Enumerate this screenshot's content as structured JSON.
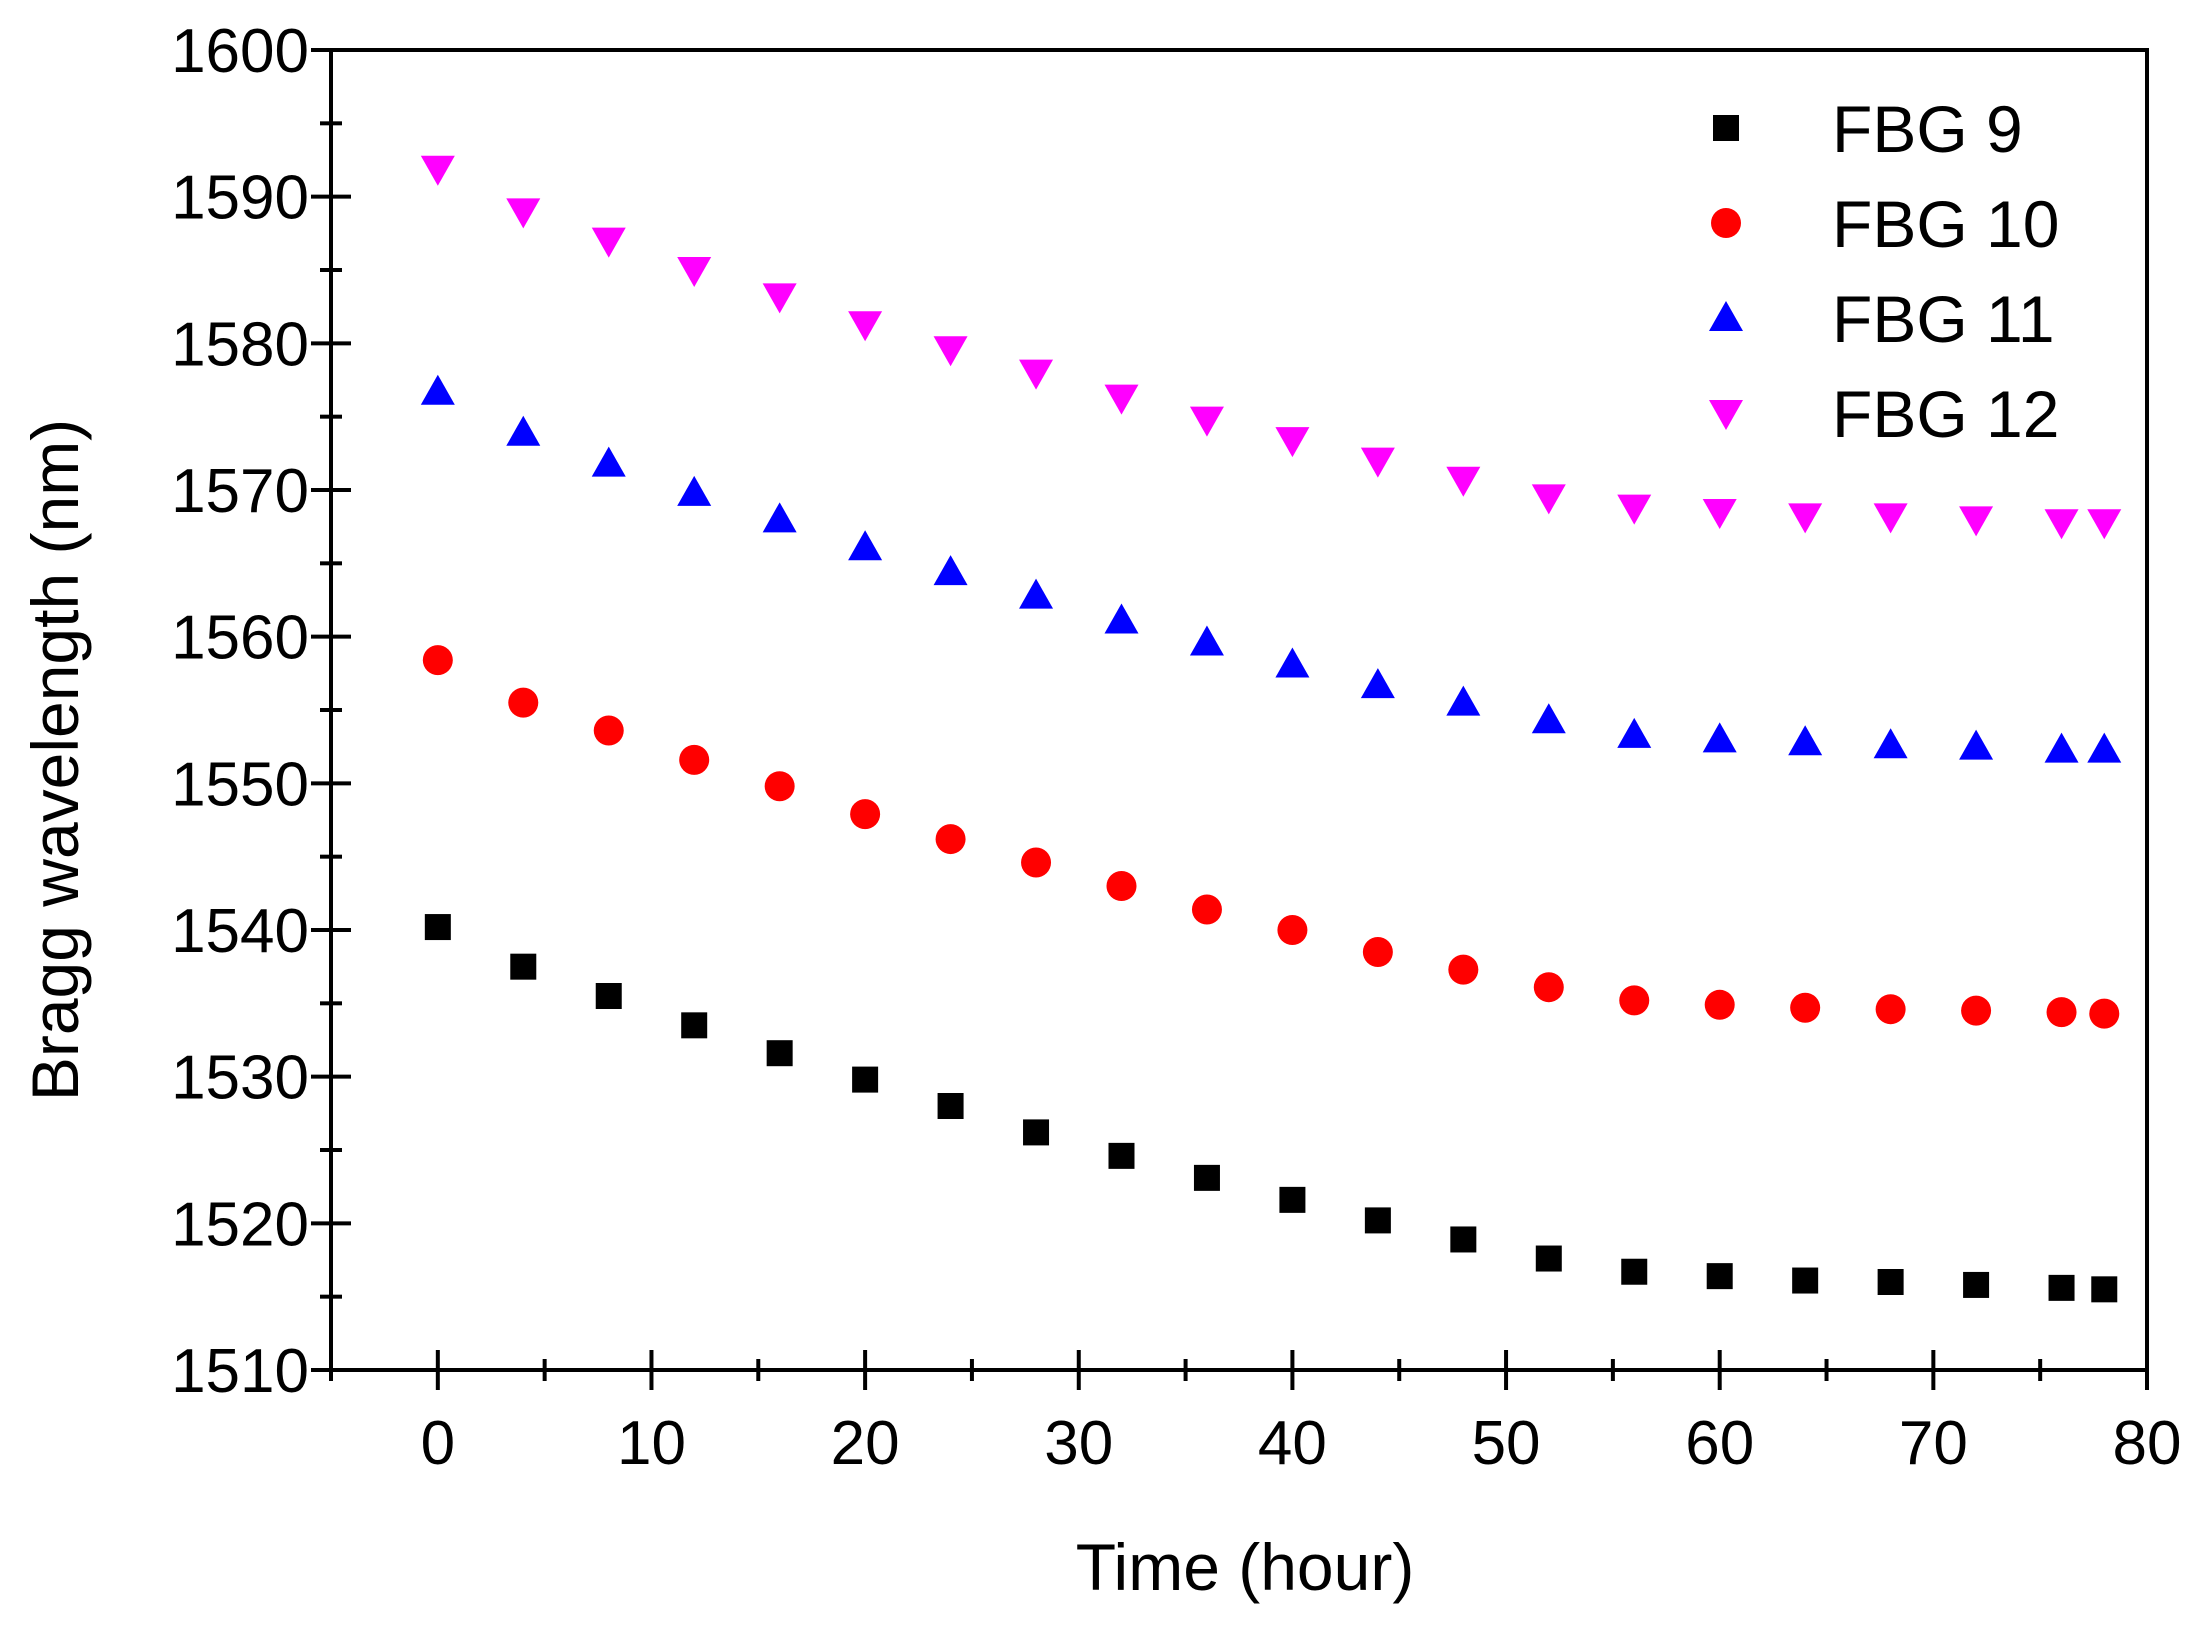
{
  "chart_data": {
    "type": "scatter",
    "title": "",
    "xlabel": "Time (hour)",
    "ylabel": "Bragg wavelength (nm)",
    "xlim": [
      -5,
      80
    ],
    "ylim": [
      1510,
      1600
    ],
    "x_ticks": [
      0,
      10,
      20,
      30,
      40,
      50,
      60,
      70,
      80
    ],
    "y_ticks": [
      1510,
      1520,
      1530,
      1540,
      1550,
      1560,
      1570,
      1580,
      1590,
      1600
    ],
    "grid": false,
    "legend_position": "top-right",
    "x": [
      0,
      4,
      8,
      12,
      16,
      20,
      24,
      28,
      32,
      36,
      40,
      44,
      48,
      52,
      56,
      60,
      64,
      68,
      72,
      76,
      78
    ],
    "series": [
      {
        "name": "FBG 9",
        "marker": "square",
        "color": "#000000",
        "values": [
          1540.2,
          1537.5,
          1535.5,
          1533.5,
          1531.6,
          1529.8,
          1528.0,
          1526.2,
          1524.6,
          1523.1,
          1521.6,
          1520.2,
          1518.9,
          1517.6,
          1516.7,
          1516.4,
          1516.1,
          1516.0,
          1515.8,
          1515.6,
          1515.5
        ]
      },
      {
        "name": "FBG 10",
        "marker": "circle",
        "color": "#ff0000",
        "values": [
          1558.4,
          1555.5,
          1553.6,
          1551.6,
          1549.8,
          1547.9,
          1546.2,
          1544.6,
          1543.0,
          1541.4,
          1540.0,
          1538.5,
          1537.3,
          1536.1,
          1535.2,
          1534.9,
          1534.7,
          1534.6,
          1534.5,
          1534.4,
          1534.3
        ]
      },
      {
        "name": "FBG 11",
        "marker": "triangle-up",
        "color": "#0000ff",
        "values": [
          1576.7,
          1573.9,
          1571.8,
          1569.8,
          1568.0,
          1566.1,
          1564.4,
          1562.8,
          1561.1,
          1559.6,
          1558.1,
          1556.7,
          1555.5,
          1554.3,
          1553.3,
          1553.0,
          1552.8,
          1552.6,
          1552.5,
          1552.3,
          1552.3
        ]
      },
      {
        "name": "FBG 12",
        "marker": "triangle-down",
        "color": "#ff00ff",
        "values": [
          1591.9,
          1589.0,
          1587.0,
          1585.0,
          1583.2,
          1581.3,
          1579.6,
          1578.0,
          1576.3,
          1574.8,
          1573.4,
          1572.0,
          1570.7,
          1569.5,
          1568.8,
          1568.5,
          1568.2,
          1568.2,
          1568.0,
          1567.8,
          1567.8
        ]
      }
    ]
  }
}
